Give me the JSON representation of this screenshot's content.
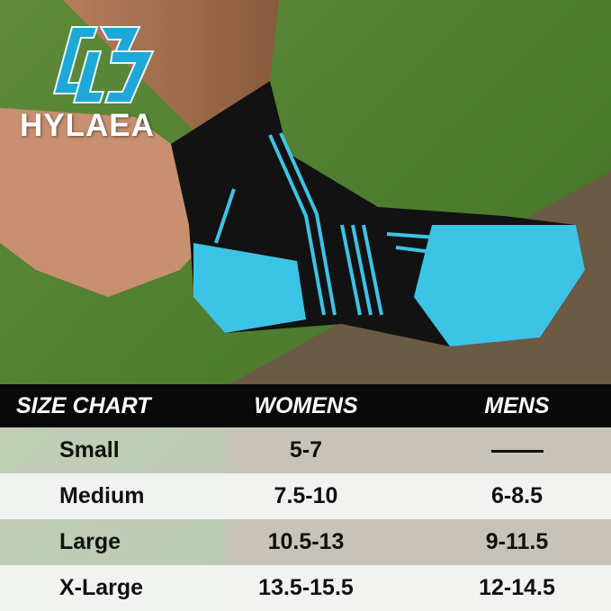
{
  "brand": {
    "name": "HYLAEA",
    "logo_color": "#1ea8d8"
  },
  "colors": {
    "sock_accent": "#3cc4e6",
    "header_bg": "#0a0909"
  },
  "size_chart": {
    "headers": [
      "SIZE CHART",
      "WOMENS",
      "MENS"
    ],
    "rows": [
      {
        "size": "Small",
        "womens": "5-7",
        "mens": "—"
      },
      {
        "size": "Medium",
        "womens": "7.5-10",
        "mens": "6-8.5"
      },
      {
        "size": "Large",
        "womens": "10.5-13",
        "mens": "9-11.5"
      },
      {
        "size": "X-Large",
        "womens": "13.5-15.5",
        "mens": "12-14.5"
      }
    ]
  }
}
